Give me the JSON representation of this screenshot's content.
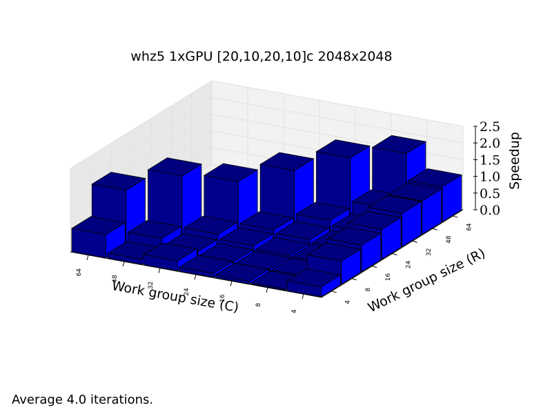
{
  "chart_data": {
    "type": "bar3d",
    "title": "whz5 1xGPU [20,10,20,10]c 2048x2048",
    "xlabel": "Work group size (C)",
    "ylabel": "Work group size (R)",
    "zlabel": "Speedup",
    "x_categories": [
      "64",
      "48",
      "32",
      "24",
      "16",
      "8",
      "4"
    ],
    "y_categories": [
      "4",
      "8",
      "16",
      "24",
      "32",
      "48",
      "64"
    ],
    "zlim": [
      0,
      2.5
    ],
    "z_ticks": [
      "0.0",
      "0.5",
      "1.0",
      "1.5",
      "2.0",
      "2.5"
    ],
    "grid": true,
    "bars": [
      {
        "x": "64",
        "y": "4",
        "value": 0.7
      },
      {
        "x": "64",
        "y": "8",
        "value": 1.65
      },
      {
        "x": "48",
        "y": "4",
        "value": 0.15
      },
      {
        "x": "48",
        "y": "8",
        "value": 0.4
      },
      {
        "x": "48",
        "y": "16",
        "value": 1.9
      },
      {
        "x": "32",
        "y": "4",
        "value": 0.3
      },
      {
        "x": "32",
        "y": "8",
        "value": 0.2
      },
      {
        "x": "32",
        "y": "16",
        "value": 0.35
      },
      {
        "x": "32",
        "y": "24",
        "value": 1.55
      },
      {
        "x": "24",
        "y": "4",
        "value": 0.12
      },
      {
        "x": "24",
        "y": "8",
        "value": 0.1
      },
      {
        "x": "24",
        "y": "16",
        "value": 0.2
      },
      {
        "x": "24",
        "y": "24",
        "value": 0.3
      },
      {
        "x": "24",
        "y": "32",
        "value": 1.7
      },
      {
        "x": "16",
        "y": "4",
        "value": 0.08
      },
      {
        "x": "16",
        "y": "8",
        "value": 0.06
      },
      {
        "x": "16",
        "y": "16",
        "value": 0.1
      },
      {
        "x": "16",
        "y": "24",
        "value": 0.2
      },
      {
        "x": "16",
        "y": "32",
        "value": 0.4
      },
      {
        "x": "16",
        "y": "48",
        "value": 1.9
      },
      {
        "x": "8",
        "y": "4",
        "value": 0.04
      },
      {
        "x": "8",
        "y": "8",
        "value": 0.05
      },
      {
        "x": "8",
        "y": "16",
        "value": 0.08
      },
      {
        "x": "8",
        "y": "24",
        "value": 0.12
      },
      {
        "x": "8",
        "y": "32",
        "value": 0.25
      },
      {
        "x": "8",
        "y": "48",
        "value": 0.6
      },
      {
        "x": "8",
        "y": "64",
        "value": 1.85
      },
      {
        "x": "4",
        "y": "4",
        "value": 0.3
      },
      {
        "x": "4",
        "y": "8",
        "value": 0.7
      },
      {
        "x": "4",
        "y": "16",
        "value": 0.8
      },
      {
        "x": "4",
        "y": "24",
        "value": 0.9
      },
      {
        "x": "4",
        "y": "32",
        "value": 1.0
      },
      {
        "x": "4",
        "y": "48",
        "value": 1.0
      },
      {
        "x": "4",
        "y": "64",
        "value": 1.05
      }
    ]
  },
  "colors": {
    "bar_top": "#00007f",
    "bar_front": "#00008c",
    "bar_side": "#0000ff",
    "pane_back": "#f2f2f2",
    "pane_side": "#e8e8e8",
    "grid": "#e0e0e0"
  },
  "footnote": "Average 4.0 iterations."
}
